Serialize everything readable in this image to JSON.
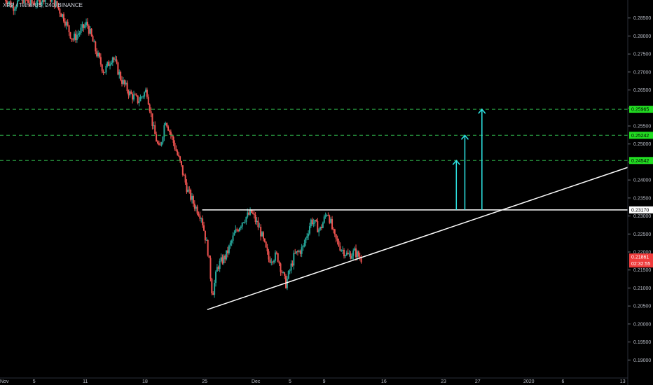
{
  "header": {
    "symbol_line": "XRP / TetherUS, 240, BINANCE"
  },
  "colors": {
    "background": "#000000",
    "up": "#26a69a",
    "down": "#ef5350",
    "level_line": "#2fb24a",
    "level_tag": "#22dd22",
    "trend_line": "#ffffff",
    "target_arrow": "#2ee6e6",
    "price_tag": "#ef3b3b",
    "axis_text": "#b8bcc6"
  },
  "chart_data": {
    "type": "candlestick",
    "ylim": [
      0.185,
      0.29
    ],
    "y_ticks": [
      "0.18500",
      "0.19000",
      "0.19500",
      "0.20000",
      "0.20500",
      "0.21000",
      "0.21500",
      "0.22000",
      "0.22500",
      "0.23000",
      "0.23500",
      "0.24000",
      "0.24500",
      "0.25000",
      "0.25500",
      "0.26000",
      "0.26500",
      "0.27000",
      "0.27500",
      "0.28000",
      "0.28500",
      "0.29000"
    ],
    "x_ticks": [
      {
        "label": "Nov",
        "x": 0
      },
      {
        "label": "5",
        "x": 4
      },
      {
        "label": "11",
        "x": 10
      },
      {
        "label": "18",
        "x": 17
      },
      {
        "label": "25",
        "x": 24
      },
      {
        "label": "Dec",
        "x": 30
      },
      {
        "label": "5",
        "x": 34
      },
      {
        "label": "9",
        "x": 38
      },
      {
        "label": "16",
        "x": 45
      },
      {
        "label": "23",
        "x": 52
      },
      {
        "label": "27",
        "x": 56
      },
      {
        "label": "2020",
        "x": 62
      },
      {
        "label": "6",
        "x": 66
      },
      {
        "label": "13",
        "x": 73
      }
    ],
    "xlim": [
      0,
      73.6
    ],
    "candle_path": [
      [
        0.5,
        0.291
      ],
      [
        1.5,
        0.288
      ],
      [
        2.5,
        0.2905
      ],
      [
        3.5,
        0.289
      ],
      [
        4.5,
        0.2895
      ],
      [
        5.5,
        0.2915
      ],
      [
        6.5,
        0.289
      ],
      [
        7.5,
        0.285
      ],
      [
        8.5,
        0.279
      ],
      [
        9.3,
        0.281
      ],
      [
        10.2,
        0.2835
      ],
      [
        11.2,
        0.276
      ],
      [
        12.2,
        0.27
      ],
      [
        13.2,
        0.2745
      ],
      [
        14.2,
        0.268
      ],
      [
        15.2,
        0.264
      ],
      [
        16.2,
        0.262
      ],
      [
        17.2,
        0.265
      ],
      [
        18.0,
        0.254
      ],
      [
        18.7,
        0.248
      ],
      [
        19.4,
        0.257
      ],
      [
        20.4,
        0.25
      ],
      [
        21.2,
        0.244
      ],
      [
        22.0,
        0.237
      ],
      [
        22.8,
        0.233
      ],
      [
        23.6,
        0.23
      ],
      [
        24.4,
        0.22
      ],
      [
        24.9,
        0.208
      ],
      [
        25.5,
        0.216
      ],
      [
        26.5,
        0.219
      ],
      [
        27.5,
        0.225
      ],
      [
        28.5,
        0.229
      ],
      [
        29.5,
        0.231
      ],
      [
        30.5,
        0.226
      ],
      [
        31.5,
        0.218
      ],
      [
        32.5,
        0.219
      ],
      [
        33.5,
        0.211
      ],
      [
        34.5,
        0.219
      ],
      [
        35.5,
        0.221
      ],
      [
        36.5,
        0.229
      ],
      [
        37.5,
        0.226
      ],
      [
        38.4,
        0.2315
      ],
      [
        39.2,
        0.224
      ],
      [
        40.0,
        0.221
      ],
      [
        40.8,
        0.219
      ],
      [
        41.6,
        0.22
      ],
      [
        42.4,
        0.218
      ]
    ],
    "last_price": 0.21861,
    "countdown": "02:32:55",
    "resistance": {
      "price": 0.2317,
      "x_start": 23.7,
      "x_end": 73.6
    },
    "trendline": {
      "x1": 24.3,
      "y1": 0.204,
      "x2": 73.6,
      "y2": 0.2435
    },
    "levels": [
      {
        "price": 0.24542,
        "label": "0.24542"
      },
      {
        "price": 0.25242,
        "label": "0.25242"
      },
      {
        "price": 0.25965,
        "label": "0.25965"
      }
    ],
    "resistance_label": "0.23170",
    "last_price_label": "0.21861",
    "targets": [
      {
        "x": 53.5,
        "from": 0.2317,
        "to": 0.24542
      },
      {
        "x": 54.5,
        "from": 0.2317,
        "to": 0.25242
      },
      {
        "x": 56.5,
        "from": 0.2317,
        "to": 0.25965
      }
    ]
  }
}
